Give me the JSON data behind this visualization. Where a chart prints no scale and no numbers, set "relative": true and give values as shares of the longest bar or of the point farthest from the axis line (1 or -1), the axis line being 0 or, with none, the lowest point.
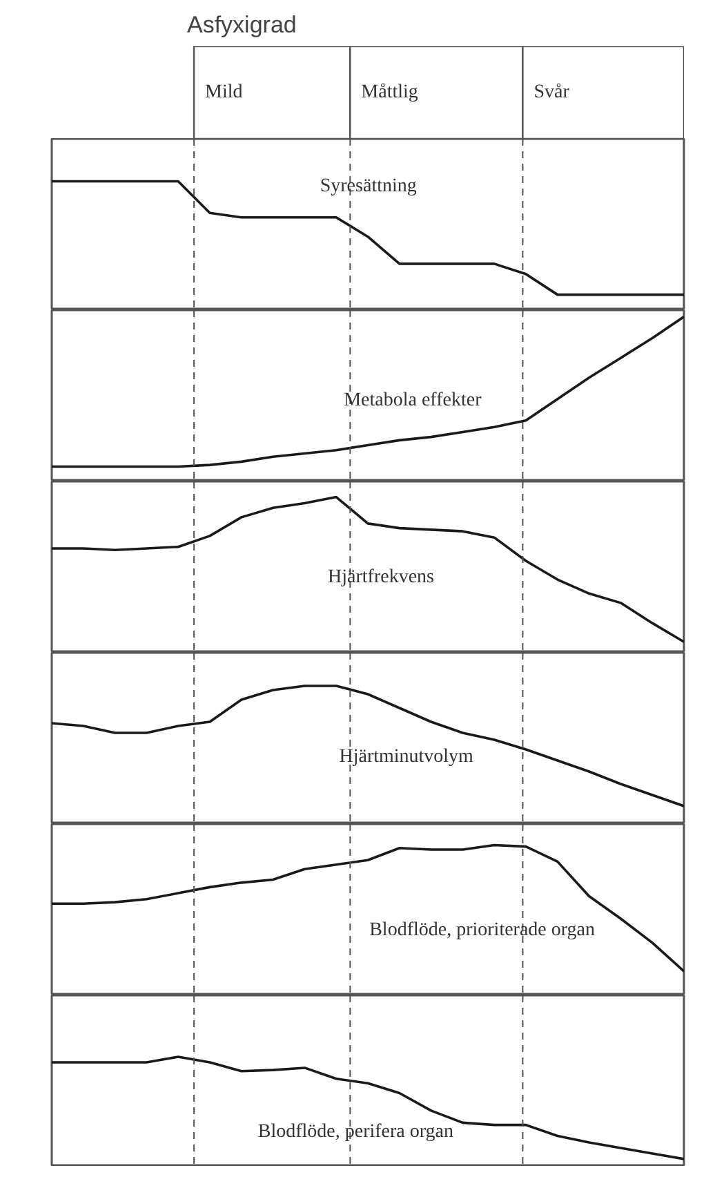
{
  "chart_data": [
    {
      "type": "line",
      "title": "Asfyxigrad",
      "relative": true,
      "tick_labels": false,
      "annotations": [
        "Syresättning",
        "Mild",
        "Måttlig",
        "Svår"
      ],
      "categories": [
        null,
        null,
        null,
        null,
        null,
        null,
        null,
        null,
        null,
        null,
        null,
        null,
        null,
        null,
        null,
        null,
        null,
        null,
        null,
        null,
        null
      ],
      "series": [
        {
          "color": "#1a1a1a",
          "values": [
            1,
            1,
            1,
            1,
            1,
            0.755,
            0.72,
            0.72,
            0.72,
            0.72,
            0.57,
            0.36,
            0.36,
            0.36,
            0.36,
            0.28,
            0.12,
            0.12,
            0.12,
            0.12,
            0.12
          ]
        }
      ]
    },
    {
      "type": "line",
      "relative": true,
      "tick_labels": false,
      "annotations": [
        "Metabola effekter"
      ],
      "categories": [
        null,
        null,
        null,
        null,
        null,
        null,
        null,
        null,
        null,
        null,
        null,
        null,
        null,
        null,
        null,
        null,
        null,
        null,
        null,
        null,
        null
      ],
      "series": [
        {
          "color": "#1a1a1a",
          "values": [
            0.09,
            0.09,
            0.09,
            0.09,
            0.09,
            0.1,
            0.12,
            0.15,
            0.17,
            0.19,
            0.22,
            0.25,
            0.27,
            0.3,
            0.33,
            0.37,
            0.5,
            0.63,
            0.75,
            0.87,
            1
          ]
        }
      ]
    },
    {
      "type": "line",
      "relative": true,
      "tick_labels": false,
      "annotations": [
        "Hjärtfrekvens"
      ],
      "categories": [
        null,
        null,
        null,
        null,
        null,
        null,
        null,
        null,
        null,
        null,
        null,
        null,
        null,
        null,
        null,
        null,
        null,
        null,
        null,
        null,
        null
      ],
      "series": [
        {
          "color": "#1a1a1a",
          "values": [
            0.67,
            0.67,
            0.66,
            0.67,
            0.68,
            0.75,
            0.87,
            0.93,
            0.96,
            1,
            0.83,
            0.8,
            0.79,
            0.78,
            0.74,
            0.59,
            0.47,
            0.38,
            0.32,
            0.19,
            0.07
          ]
        }
      ]
    },
    {
      "type": "line",
      "relative": true,
      "tick_labels": false,
      "annotations": [
        "Hjärtminutvolym"
      ],
      "categories": [
        null,
        null,
        null,
        null,
        null,
        null,
        null,
        null,
        null,
        null,
        null,
        null,
        null,
        null,
        null,
        null,
        null,
        null,
        null,
        null,
        null
      ],
      "series": [
        {
          "color": "#1a1a1a",
          "values": [
            0.73,
            0.71,
            0.66,
            0.66,
            0.71,
            0.74,
            0.9,
            0.97,
            1,
            1,
            0.94,
            0.84,
            0.74,
            0.66,
            0.61,
            0.54,
            0.46,
            0.38,
            0.29,
            0.21,
            0.13
          ]
        }
      ]
    },
    {
      "type": "line",
      "relative": true,
      "tick_labels": false,
      "annotations": [
        "Blodflöde, prioriterade organ"
      ],
      "categories": [
        null,
        null,
        null,
        null,
        null,
        null,
        null,
        null,
        null,
        null,
        null,
        null,
        null,
        null,
        null,
        null,
        null,
        null,
        null,
        null,
        null
      ],
      "series": [
        {
          "color": "#1a1a1a",
          "values": [
            0.61,
            0.61,
            0.62,
            0.64,
            0.68,
            0.72,
            0.75,
            0.77,
            0.84,
            0.87,
            0.9,
            0.98,
            0.97,
            0.97,
            1,
            0.99,
            0.89,
            0.66,
            0.51,
            0.35,
            0.16
          ]
        }
      ]
    },
    {
      "type": "line",
      "relative": true,
      "tick_labels": false,
      "annotations": [
        "Blodflöde, perifera organ"
      ],
      "categories": [
        null,
        null,
        null,
        null,
        null,
        null,
        null,
        null,
        null,
        null,
        null,
        null,
        null,
        null,
        null,
        null,
        null,
        null,
        null,
        null,
        null
      ],
      "series": [
        {
          "color": "#1a1a1a",
          "values": [
            0.95,
            0.95,
            0.95,
            0.95,
            1,
            0.95,
            0.87,
            0.88,
            0.9,
            0.8,
            0.76,
            0.67,
            0.51,
            0.4,
            0.38,
            0.38,
            0.28,
            0.22,
            0.17,
            0.12,
            0.07
          ]
        }
      ]
    }
  ]
}
